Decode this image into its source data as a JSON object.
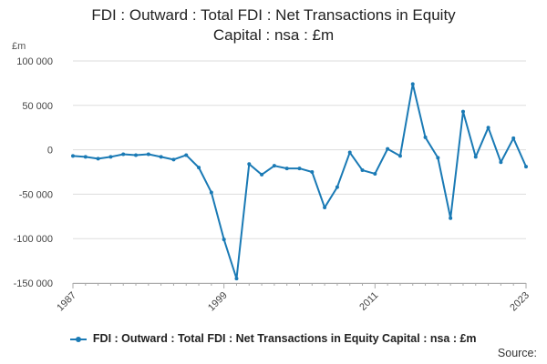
{
  "chart_data": {
    "type": "line",
    "title_lines": [
      "FDI : Outward : Total FDI : Net Transactions in Equity",
      "Capital : nsa : £m"
    ],
    "unit_label": "£m",
    "ylim": [
      -150000,
      100000
    ],
    "y_ticks": [
      100000,
      50000,
      0,
      -50000,
      -100000,
      -150000
    ],
    "y_tick_labels": [
      "100 000",
      "50 000",
      "0",
      "-50 000",
      "-100 000",
      "-150 000"
    ],
    "xlim": [
      1987,
      2023
    ],
    "x_ticks": [
      1987,
      1999,
      2011,
      2023
    ],
    "x_tick_labels": [
      "1987",
      "1999",
      "2011",
      "2023"
    ],
    "grid": true,
    "legend_position": "bottom",
    "series": [
      {
        "name": "FDI : Outward : Total FDI : Net Transactions in Equity Capital : nsa : £m",
        "color": "#1f77b4",
        "x": [
          1987,
          1988,
          1989,
          1990,
          1991,
          1992,
          1993,
          1994,
          1995,
          1996,
          1997,
          1998,
          1999,
          2000,
          2001,
          2002,
          2003,
          2004,
          2005,
          2006,
          2007,
          2008,
          2009,
          2010,
          2011,
          2012,
          2013,
          2014,
          2015,
          2016,
          2017,
          2018,
          2019,
          2020,
          2021,
          2022,
          2023
        ],
        "y": [
          -7000,
          -8000,
          -10000,
          -8000,
          -5000,
          -6000,
          -5000,
          -8000,
          -11000,
          -6000,
          -20000,
          -48000,
          -101000,
          -145000,
          -16000,
          -28000,
          -18000,
          -21000,
          -21000,
          -25000,
          -65000,
          -42000,
          -3000,
          -23000,
          -27000,
          1000,
          -7000,
          74000,
          14000,
          -9000,
          -77000,
          43000,
          -8000,
          25000,
          -14000,
          13000,
          -19000
        ]
      }
    ]
  },
  "legend": {
    "label": "FDI : Outward : Total FDI : Net Transactions in Equity Capital : nsa : £m"
  },
  "source_label": "Source:",
  "colors": {
    "series": "#1a7ab5",
    "grid": "#dddddd",
    "axis": "#aaaaaa"
  }
}
